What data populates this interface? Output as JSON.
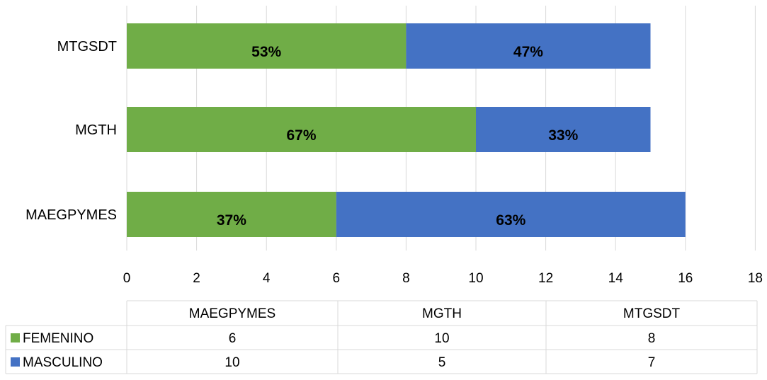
{
  "chart_data": {
    "type": "bar",
    "orientation": "horizontal",
    "stacked": true,
    "categories": [
      "MAEGPYMES",
      "MGTH",
      "MTGSDT"
    ],
    "series": [
      {
        "name": "FEMENINO",
        "values": [
          6,
          10,
          8
        ],
        "color": "#70ad47",
        "data_labels": [
          "37%",
          "67%",
          "53%"
        ]
      },
      {
        "name": "MASCULINO",
        "values": [
          10,
          5,
          7
        ],
        "color": "#4472c4",
        "data_labels": [
          "63%",
          "33%",
          "47%"
        ]
      }
    ],
    "xlim": [
      0,
      18
    ],
    "x_ticks": [
      "0",
      "2",
      "4",
      "6",
      "8",
      "10",
      "12",
      "14",
      "16",
      "18"
    ],
    "grid": true,
    "data_table": {
      "headers": [
        "MAEGPYMES",
        "MGTH",
        "MTGSDT"
      ],
      "rows": [
        {
          "label": "FEMENINO",
          "values": [
            "6",
            "10",
            "8"
          ]
        },
        {
          "label": "MASCULINO",
          "values": [
            "10",
            "5",
            "7"
          ]
        }
      ]
    }
  }
}
